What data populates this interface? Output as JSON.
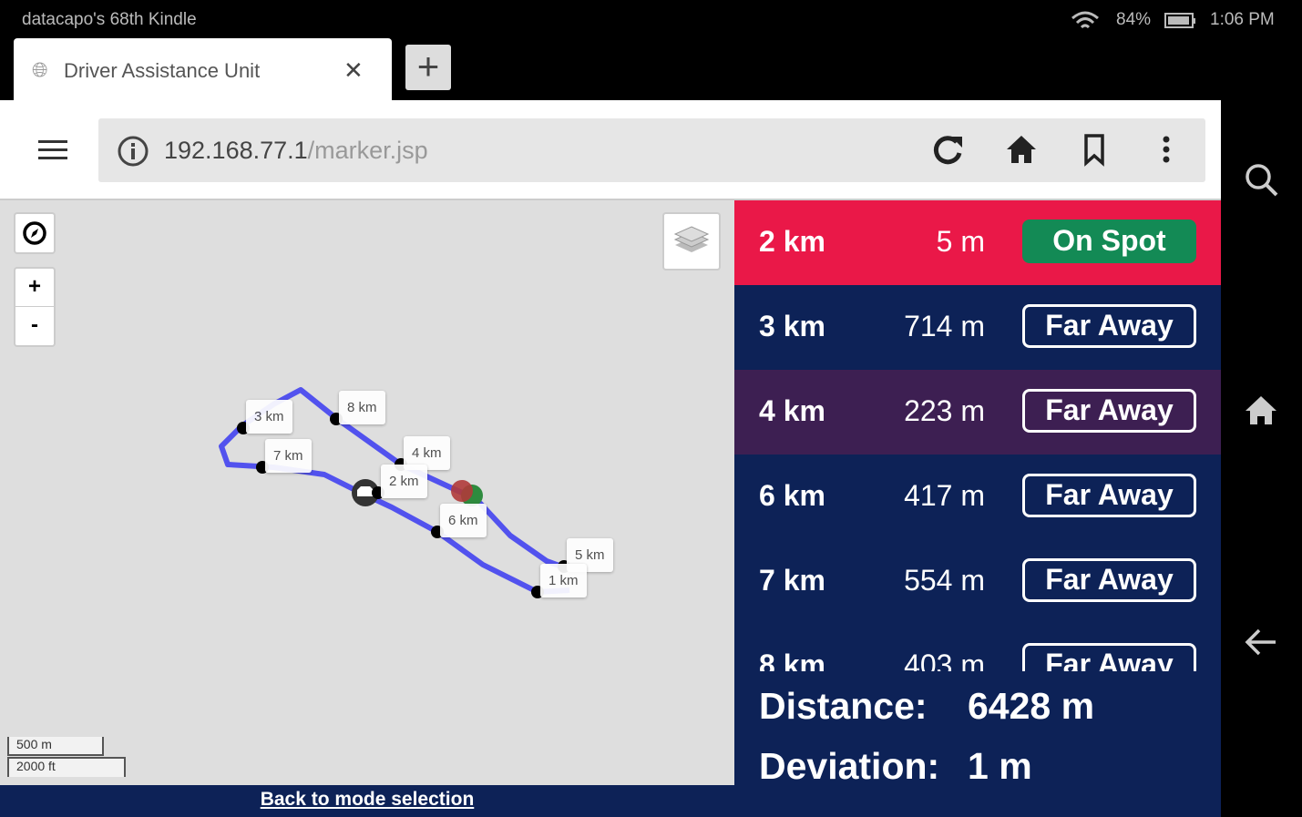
{
  "status": {
    "device": "datacapo's 68th Kindle",
    "battery": "84%",
    "time": "1:06 PM"
  },
  "tab": {
    "title": "Driver Assistance Unit",
    "close": "✕",
    "new_tab": "+"
  },
  "url": {
    "host": "192.168.77.1",
    "path": "/marker.jsp"
  },
  "map": {
    "zoom_in": "+",
    "zoom_out": "-",
    "scale_metric": "500 m",
    "scale_imperial": "2000 ft",
    "markers": [
      "3 km",
      "8 km",
      "7 km",
      "4 km",
      "2 km",
      "6 km",
      "5 km",
      "1 km"
    ]
  },
  "back_link": "Back to mode selection",
  "rows": [
    {
      "km": "2 km",
      "dist": "5 m",
      "status": "On Spot",
      "color": "#ea1848"
    },
    {
      "km": "3 km",
      "dist": "714 m",
      "status": "Far Away",
      "color": "#0d2257"
    },
    {
      "km": "4 km",
      "dist": "223 m",
      "status": "Far Away",
      "color": "#3d1f52"
    },
    {
      "km": "6 km",
      "dist": "417 m",
      "status": "Far Away",
      "color": "#0d2257"
    },
    {
      "km": "7 km",
      "dist": "554 m",
      "status": "Far Away",
      "color": "#0d2257"
    },
    {
      "km": "8 km",
      "dist": "403 m",
      "status": "Far Away",
      "color": "#0d2257"
    }
  ],
  "summary": {
    "distance_label": "Distance:",
    "distance_value": "6428 m",
    "deviation_label": "Deviation:",
    "deviation_value": "1 m"
  },
  "colors": {
    "on_spot": "#138a55",
    "route": "#5555ee"
  }
}
